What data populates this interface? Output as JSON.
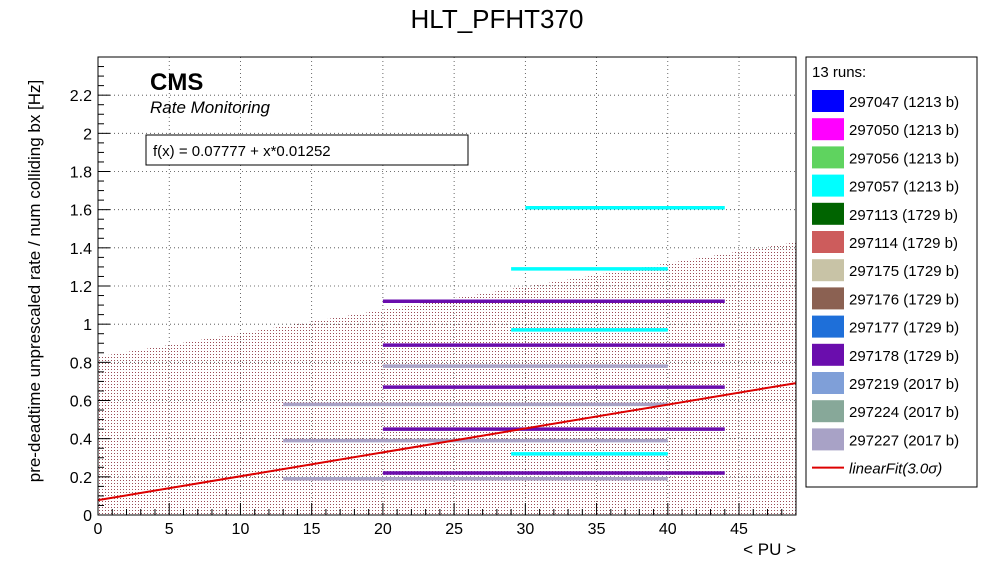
{
  "colors": {
    "fit_line": "#dd0000",
    "band_fill": "#a0505a"
  },
  "chart_data": {
    "type": "scatter",
    "title": "HLT_PFHT370",
    "xlabel": "< PU >",
    "ylabel": "pre-deadtime unprescaled rate / num colliding bx [Hz]",
    "xlim": [
      0,
      49
    ],
    "ylim": [
      0,
      2.4
    ],
    "x_ticks": [
      0,
      5,
      10,
      15,
      20,
      25,
      30,
      35,
      40,
      45
    ],
    "y_ticks": [
      0,
      0.2,
      0.4,
      0.6,
      0.8,
      1,
      1.2,
      1.4,
      1.6,
      1.8,
      2,
      2.2
    ],
    "grid": true,
    "legend_position": "right",
    "legend_header": "13 runs:",
    "cms_label": "CMS",
    "cms_sublabel": "Rate Monitoring",
    "fit_formula_text": "f(x) = 0.07777 + x*0.01252",
    "fit": {
      "name": "linearFit(3.0σ)",
      "intercept": 0.07777,
      "slope": 0.01252,
      "band_at_x0": [
        0.0,
        0.83
      ],
      "band_at_x49": [
        0.0,
        1.43
      ]
    },
    "bands": [
      {
        "series": "297227 (2017 b)",
        "x": [
          13,
          40
        ],
        "y": 0.19
      },
      {
        "series": "297178 (1729 b)",
        "x": [
          20,
          44
        ],
        "y": 0.22
      },
      {
        "series": "297057 (1213 b)",
        "x": [
          29,
          40
        ],
        "y": 0.32
      },
      {
        "series": "297227 (2017 b)",
        "x": [
          13,
          40
        ],
        "y": 0.39
      },
      {
        "series": "297178 (1729 b)",
        "x": [
          20,
          44
        ],
        "y": 0.45
      },
      {
        "series": "297227 (2017 b)",
        "x": [
          13,
          40
        ],
        "y": 0.58
      },
      {
        "series": "297178 (1729 b)",
        "x": [
          20,
          44
        ],
        "y": 0.67
      },
      {
        "series": "297227 (2017 b)",
        "x": [
          20,
          40
        ],
        "y": 0.78
      },
      {
        "series": "297178 (1729 b)",
        "x": [
          20,
          44
        ],
        "y": 0.89
      },
      {
        "series": "297057 (1213 b)",
        "x": [
          29,
          40
        ],
        "y": 0.97
      },
      {
        "series": "297178 (1729 b)",
        "x": [
          20,
          44
        ],
        "y": 1.12
      },
      {
        "series": "297057 (1213 b)",
        "x": [
          29,
          40
        ],
        "y": 1.29
      },
      {
        "series": "297057 (1213 b)",
        "x": [
          30,
          44
        ],
        "y": 1.61
      }
    ],
    "series": [
      {
        "name": "297047 (1213 b)",
        "color": "#0000ff"
      },
      {
        "name": "297050 (1213 b)",
        "color": "#ff00ff"
      },
      {
        "name": "297056 (1213 b)",
        "color": "#5fd35f"
      },
      {
        "name": "297057 (1213 b)",
        "color": "#00ffff"
      },
      {
        "name": "297113 (1729 b)",
        "color": "#006400"
      },
      {
        "name": "297114 (1729 b)",
        "color": "#cd5c5c"
      },
      {
        "name": "297175 (1729 b)",
        "color": "#c8c3a6"
      },
      {
        "name": "297176 (1729 b)",
        "color": "#8b6152"
      },
      {
        "name": "297177 (1729 b)",
        "color": "#1e6fd9"
      },
      {
        "name": "297178 (1729 b)",
        "color": "#6a0dad"
      },
      {
        "name": "297219 (2017 b)",
        "color": "#7f9fd8"
      },
      {
        "name": "297224 (2017 b)",
        "color": "#87a899"
      },
      {
        "name": "297227 (2017 b)",
        "color": "#a8a2c6"
      }
    ]
  }
}
